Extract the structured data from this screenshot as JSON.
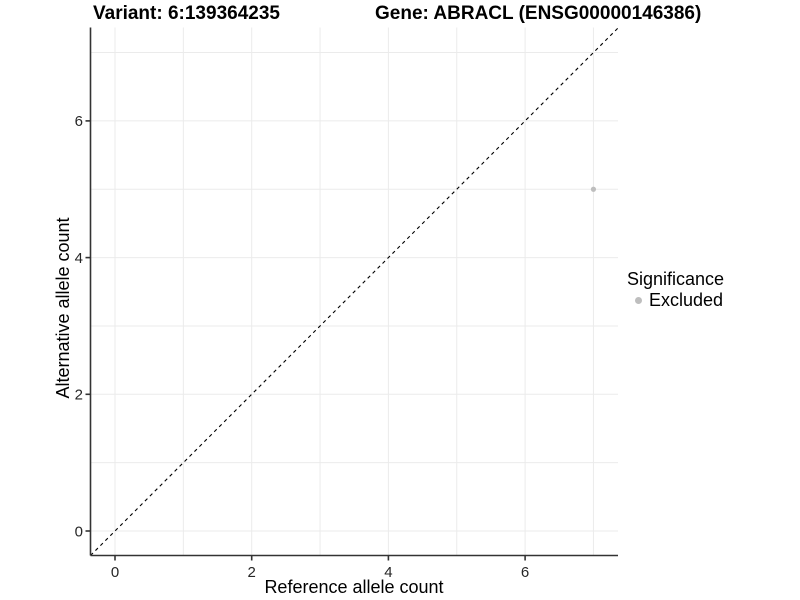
{
  "header": {
    "variant_title": "Variant: 6:139364235",
    "gene_title": "Gene: ABRACL (ENSG00000146386)"
  },
  "chart_data": {
    "type": "scatter",
    "title_left": "Variant: 6:139364235",
    "title_right": "Gene: ABRACL (ENSG00000146386)",
    "xlabel": "Reference allele count",
    "ylabel": "Alternative allele count",
    "xlim": [
      -0.36,
      7.36
    ],
    "ylim": [
      -0.36,
      7.36
    ],
    "x_ticks": [
      0,
      2,
      4,
      6
    ],
    "y_ticks": [
      0,
      2,
      4,
      6
    ],
    "grid": "on",
    "grid_positions": [
      0,
      1,
      2,
      3,
      4,
      5,
      6,
      7
    ],
    "series": [
      {
        "name": "Excluded",
        "color": "#bebebe",
        "points": [
          {
            "x": 7,
            "y": 5
          }
        ]
      }
    ],
    "reference_line": {
      "type": "identity y=x",
      "style": "dashed",
      "color": "#000000"
    },
    "legend": {
      "title": "Significance",
      "position": "right",
      "entries": [
        {
          "label": "Excluded",
          "color": "#bebebe"
        }
      ]
    }
  },
  "colors": {
    "background": "#ffffff",
    "gridline": "#ebebeb",
    "axis_line": "#333333",
    "tick_label": "#262626",
    "point": "#bebebe",
    "title_text": "#000000"
  }
}
